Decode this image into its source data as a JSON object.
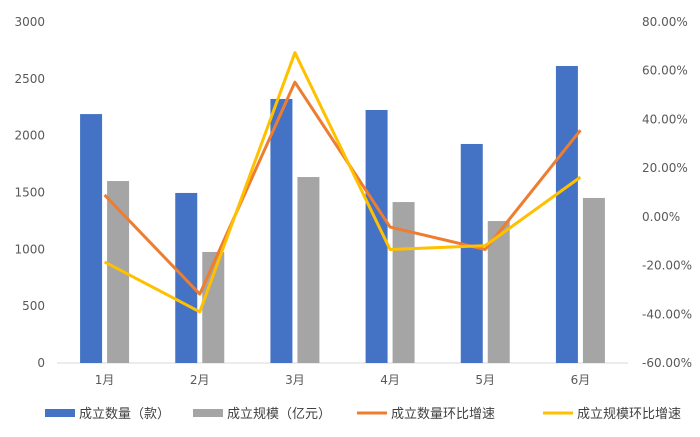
{
  "chart_data": {
    "type": "bar+line",
    "categories": [
      "1月",
      "2月",
      "3月",
      "4月",
      "5月",
      "6月"
    ],
    "series": [
      {
        "name": "成立数量（款）",
        "type": "bar",
        "axis": "left",
        "color": "#4472C4",
        "values": [
          2190,
          1496,
          2323,
          2226,
          1927,
          2613
        ]
      },
      {
        "name": "成立规模（亿元）",
        "type": "bar",
        "axis": "left",
        "color": "#A5A5A5",
        "values": [
          1601,
          977,
          1636,
          1416,
          1249,
          1452
        ]
      },
      {
        "name": "成立数量环比增速",
        "type": "line",
        "axis": "right",
        "color": "#ED7D31",
        "values": [
          9.0,
          -31.7,
          55.3,
          -4.2,
          -13.4,
          35.6
        ]
      },
      {
        "name": "成立规模环比增速",
        "type": "line",
        "axis": "right",
        "color": "#FFC000",
        "values": [
          -18.5,
          -39.0,
          67.4,
          -13.4,
          -11.8,
          16.3
        ]
      }
    ],
    "left_axis": {
      "ylim": [
        0,
        3000
      ],
      "ticks": [
        "0",
        "500",
        "1000",
        "1500",
        "2000",
        "2500",
        "3000"
      ]
    },
    "right_axis": {
      "ylim": [
        -60,
        80
      ],
      "unit": "%",
      "ticks": [
        "-60.00%",
        "-40.00%",
        "-20.00%",
        "0.00%",
        "20.00%",
        "40.00%",
        "60.00%",
        "80.00%"
      ]
    },
    "grid": false,
    "legend": "bottom"
  }
}
